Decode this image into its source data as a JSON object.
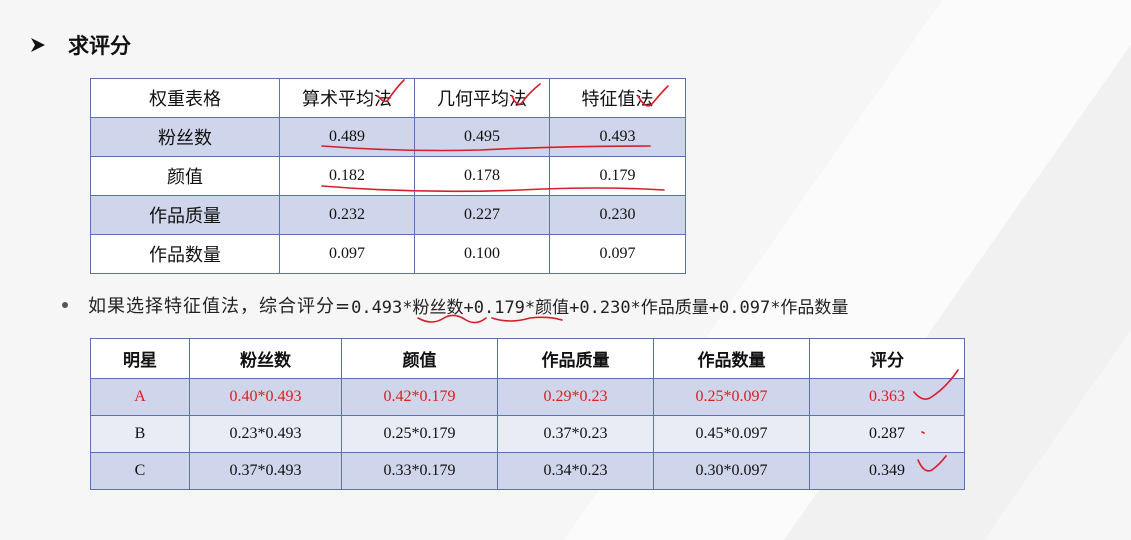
{
  "slide": {
    "title": "求评分",
    "bullet_prefix": "如果选择特征值法，综合评分=",
    "bullet_formula": "0.493*粉丝数+0.179*颜值+0.230*作品质量+0.097*作品数量"
  },
  "weights_table": {
    "header": [
      "权重表格",
      "算术平均法",
      "几何平均法",
      "特征值法"
    ],
    "rows": [
      [
        "粉丝数",
        "0.489",
        "0.495",
        "0.493"
      ],
      [
        "颜值",
        "0.182",
        "0.178",
        "0.179"
      ],
      [
        "作品质量",
        "0.232",
        "0.227",
        "0.230"
      ],
      [
        "作品数量",
        "0.097",
        "0.100",
        "0.097"
      ]
    ]
  },
  "scores_table": {
    "header": [
      "明星",
      "粉丝数",
      "颜值",
      "作品质量",
      "作品数量",
      "评分"
    ],
    "rows": [
      [
        "A",
        "0.40*0.493",
        "0.42*0.179",
        "0.29*0.23",
        "0.25*0.097",
        "0.363"
      ],
      [
        "B",
        "0.23*0.493",
        "0.25*0.179",
        "0.37*0.23",
        "0.45*0.097",
        "0.287"
      ],
      [
        "C",
        "0.37*0.493",
        "0.33*0.179",
        "0.34*0.23",
        "0.30*0.097",
        "0.349"
      ]
    ]
  },
  "colors": {
    "border": "#5b6fb7",
    "band": "#cfd5ea",
    "highlight_text": "#e21b1b",
    "ink": "#d81e2a"
  },
  "icons": [
    "arrow-bullet-icon",
    "dot-bullet-icon"
  ]
}
